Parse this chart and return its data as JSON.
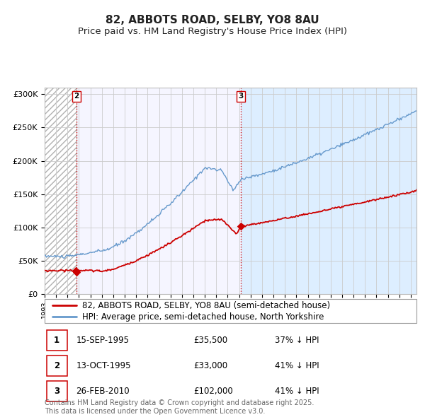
{
  "title": "82, ABBOTS ROAD, SELBY, YO8 8AU",
  "subtitle": "Price paid vs. HM Land Registry's House Price Index (HPI)",
  "legend_line1": "82, ABBOTS ROAD, SELBY, YO8 8AU (semi-detached house)",
  "legend_line2": "HPI: Average price, semi-detached house, North Yorkshire",
  "footer_line1": "Contains HM Land Registry data © Crown copyright and database right 2025.",
  "footer_line2": "This data is licensed under the Open Government Licence v3.0.",
  "transactions": [
    {
      "num": 1,
      "date": "15-SEP-1995",
      "price": "£35,500",
      "pct": "37% ↓ HPI",
      "year": 1995.71
    },
    {
      "num": 2,
      "date": "13-OCT-1995",
      "price": "£33,000",
      "pct": "41% ↓ HPI",
      "year": 1995.79
    },
    {
      "num": 3,
      "date": "26-FEB-2010",
      "price": "£102,000",
      "pct": "41% ↓ HPI",
      "year": 2010.15
    }
  ],
  "red_marker_years": [
    1995.71,
    1995.79,
    2010.15
  ],
  "red_marker_values": [
    35500,
    33000,
    102000
  ],
  "vline_years": [
    1995.79,
    2010.15
  ],
  "vline_labels": [
    "2",
    "3"
  ],
  "ylim": [
    0,
    310000
  ],
  "yticks": [
    0,
    50000,
    100000,
    150000,
    200000,
    250000,
    300000
  ],
  "ytick_labels": [
    "£0",
    "£50K",
    "£100K",
    "£150K",
    "£200K",
    "£250K",
    "£300K"
  ],
  "xlim_start": 1993.0,
  "xlim_end": 2025.5,
  "hatch_end_year": 1995.79,
  "blue_fill_start": 2010.15,
  "red_color": "#cc0000",
  "blue_color": "#6699cc",
  "blue_fill_color": "#ddeeff",
  "grid_color": "#cccccc",
  "bg_color": "#f5f5ff",
  "title_fontsize": 11,
  "subtitle_fontsize": 9.5,
  "tick_fontsize": 8,
  "legend_fontsize": 8.5,
  "footer_fontsize": 7
}
